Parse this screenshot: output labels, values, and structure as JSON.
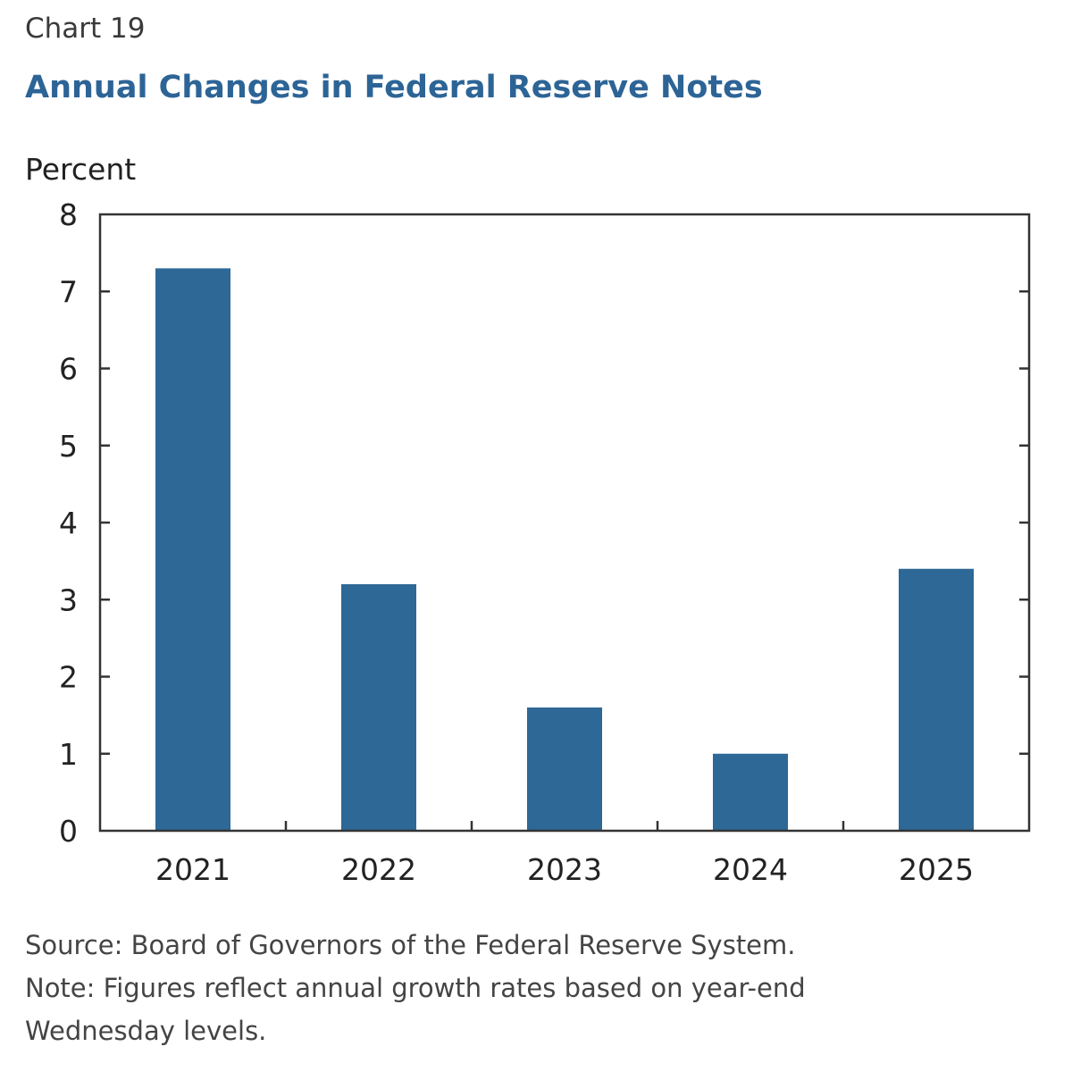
{
  "chart_label": "Chart 19",
  "colors": {
    "bar": "#2e6896",
    "title": "#2d6496"
  },
  "chart_data": {
    "type": "bar",
    "title": "Annual Changes in Federal Reserve Notes",
    "ylabel": "Percent",
    "xlabel": "",
    "categories": [
      "2021",
      "2022",
      "2023",
      "2024",
      "2025"
    ],
    "values": [
      7.3,
      3.2,
      1.6,
      1.0,
      3.4
    ],
    "ylim": [
      0,
      8
    ],
    "yticks": [
      "0",
      "1",
      "2",
      "3",
      "4",
      "5",
      "6",
      "7",
      "8"
    ],
    "grid": false
  },
  "footer": {
    "source": "Source: Board of Governors of the Federal Reserve System.",
    "note_line1": "Note: Figures reflect annual growth rates based on year-end",
    "note_line2": "Wednesday levels."
  }
}
